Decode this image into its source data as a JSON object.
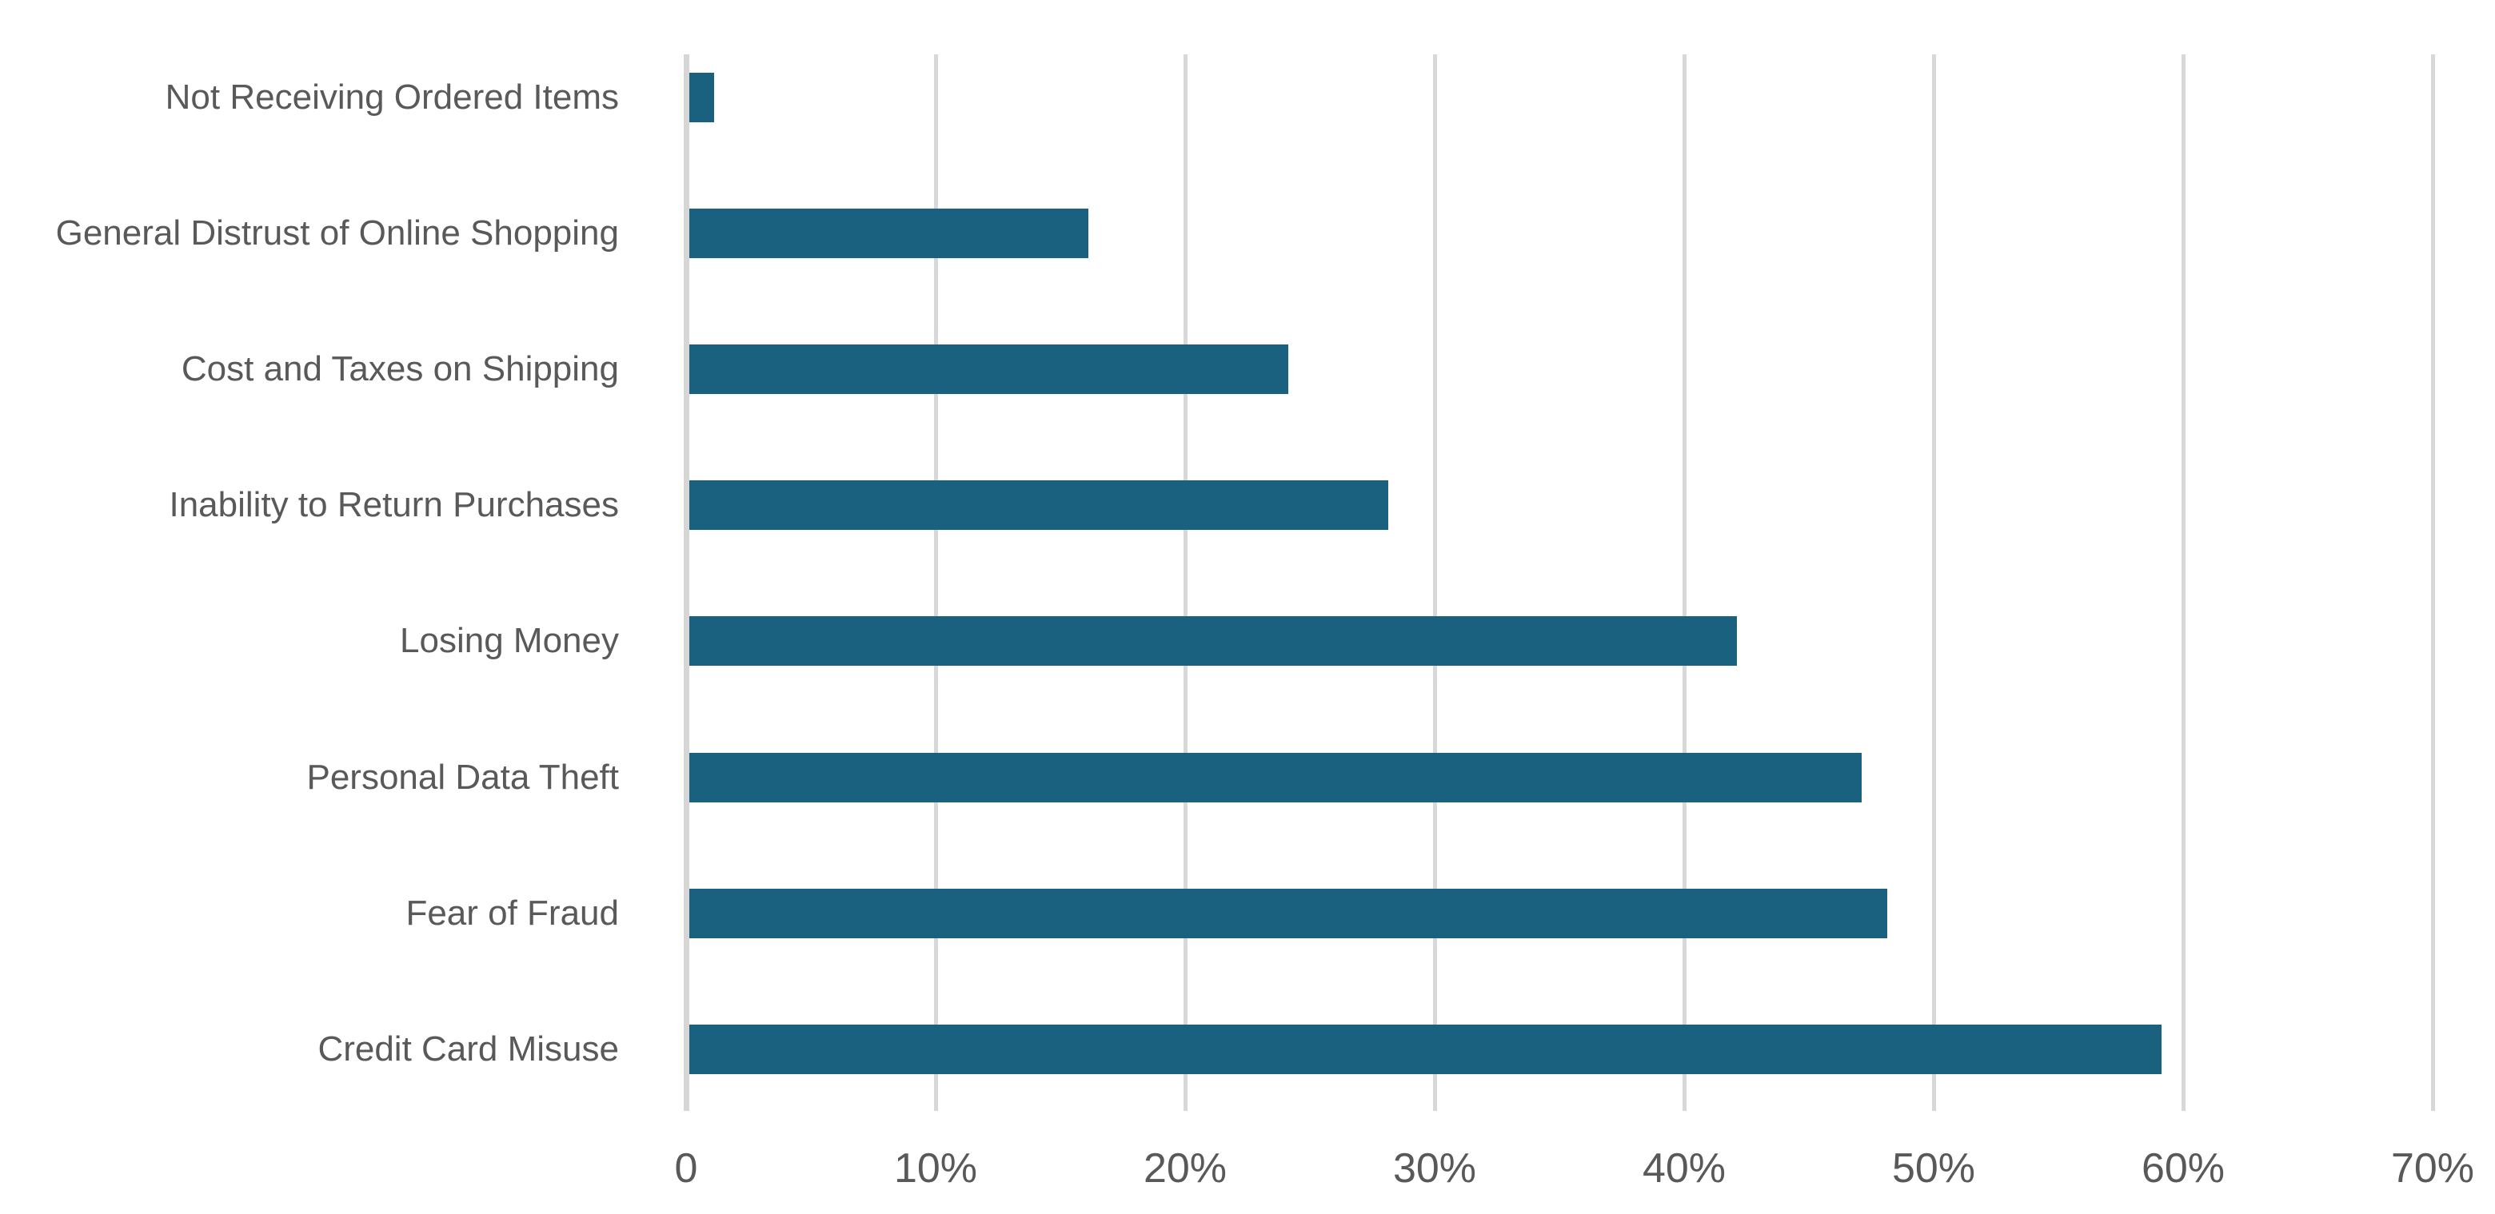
{
  "chart_data": {
    "type": "bar",
    "orientation": "horizontal",
    "title": "",
    "xlabel": "",
    "ylabel": "",
    "categories": [
      "Not Receiving Ordered Items",
      "General Distrust of Online Shopping",
      "Cost and Taxes on Shipping",
      "Inability to Return Purchases",
      "Losing Money",
      "Personal Data Theft",
      "Fear of Fraud",
      "Credit Card Misuse"
    ],
    "values": [
      1,
      16,
      24,
      28,
      42,
      47,
      48,
      59
    ],
    "unit": "percent",
    "xlim": [
      0,
      70
    ],
    "x_ticks": [
      0,
      10,
      20,
      30,
      40,
      50,
      60,
      70
    ],
    "x_tick_labels": [
      "0",
      "10%",
      "20%",
      "30%",
      "40%",
      "50%",
      "60%",
      "70%"
    ],
    "grid": true,
    "legend": false
  },
  "colors": {
    "bar": "#19617F",
    "gridline": "#D8D8D8",
    "axis_line": "#D6D6D6",
    "text": "#595959",
    "background": "#FFFFFF"
  }
}
